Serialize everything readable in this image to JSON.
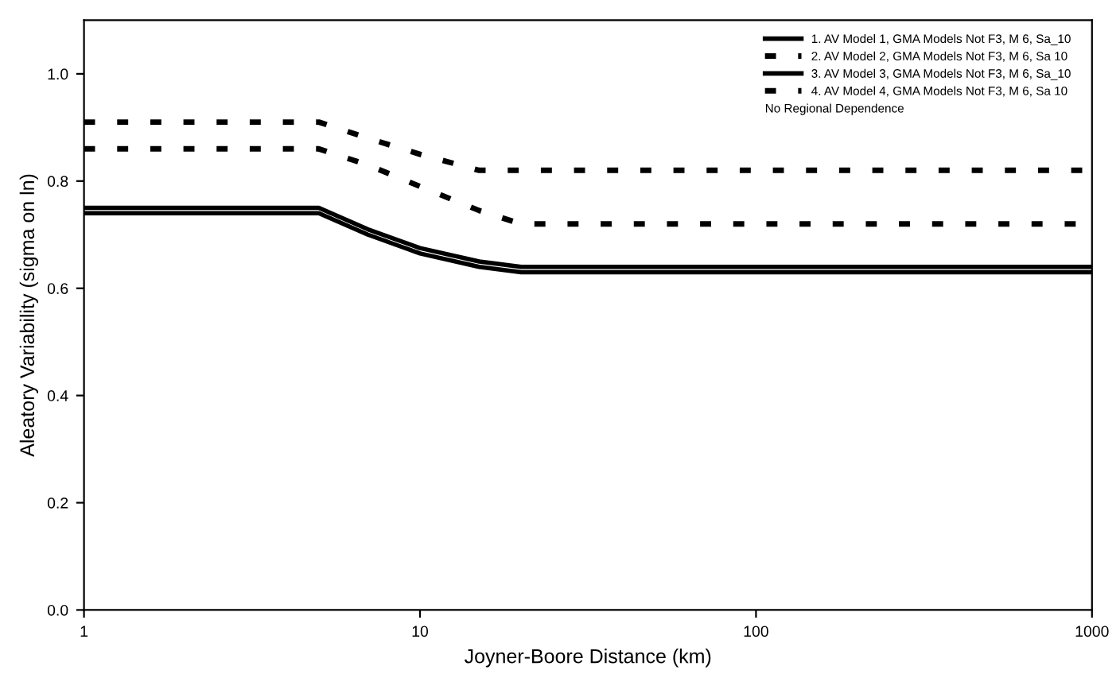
{
  "chart_data": {
    "type": "line",
    "xlabel": "Joyner-Boore Distance (km)",
    "ylabel": "Aleatory Variability (sigma on ln)",
    "log": "x",
    "xlim": [
      1,
      1000
    ],
    "xticks": [
      1,
      10,
      100,
      1000
    ],
    "ylim": [
      0,
      1.1
    ],
    "yticks": [
      {
        "value": 0,
        "label": "0.0"
      },
      0.2,
      0.4,
      0.6,
      0.8,
      {
        "value": 1,
        "label": "1.0"
      }
    ],
    "grid": false,
    "legend": "top right",
    "legend_title": "No Regional Dependence",
    "series": [
      {
        "name": "1. AV Model 1, GMA Models Not F3, M 6, Sa_10",
        "color": "#000000",
        "line_style": "solid",
        "x": [
          1,
          5,
          7,
          10,
          15,
          20,
          1000
        ],
        "values": [
          0.75,
          0.75,
          0.71,
          0.675,
          0.65,
          0.64,
          0.64
        ]
      },
      {
        "name": "2. AV Model 2, GMA Models Not F3, M 6, Sa 10",
        "color": "#000000",
        "line_style": "dashed",
        "x": [
          1,
          5,
          7,
          10,
          15,
          1000
        ],
        "values": [
          0.91,
          0.91,
          0.88,
          0.85,
          0.82,
          0.82
        ]
      },
      {
        "name": "3. AV Model 3, GMA Models Not F3, M 6, Sa_10",
        "color": "#000000",
        "line_style": "solid",
        "x": [
          1,
          5,
          7,
          10,
          15,
          20,
          1000
        ],
        "values": [
          0.74,
          0.74,
          0.7,
          0.665,
          0.64,
          0.63,
          0.63
        ]
      },
      {
        "name": "4. AV Model 4, GMA Models Not F3, M 6, Sa 10",
        "color": "#000000",
        "line_style": "dashed",
        "x": [
          1,
          5,
          7,
          10,
          15,
          20,
          1000
        ],
        "values": [
          0.86,
          0.86,
          0.83,
          0.79,
          0.745,
          0.72,
          0.72
        ]
      }
    ]
  }
}
